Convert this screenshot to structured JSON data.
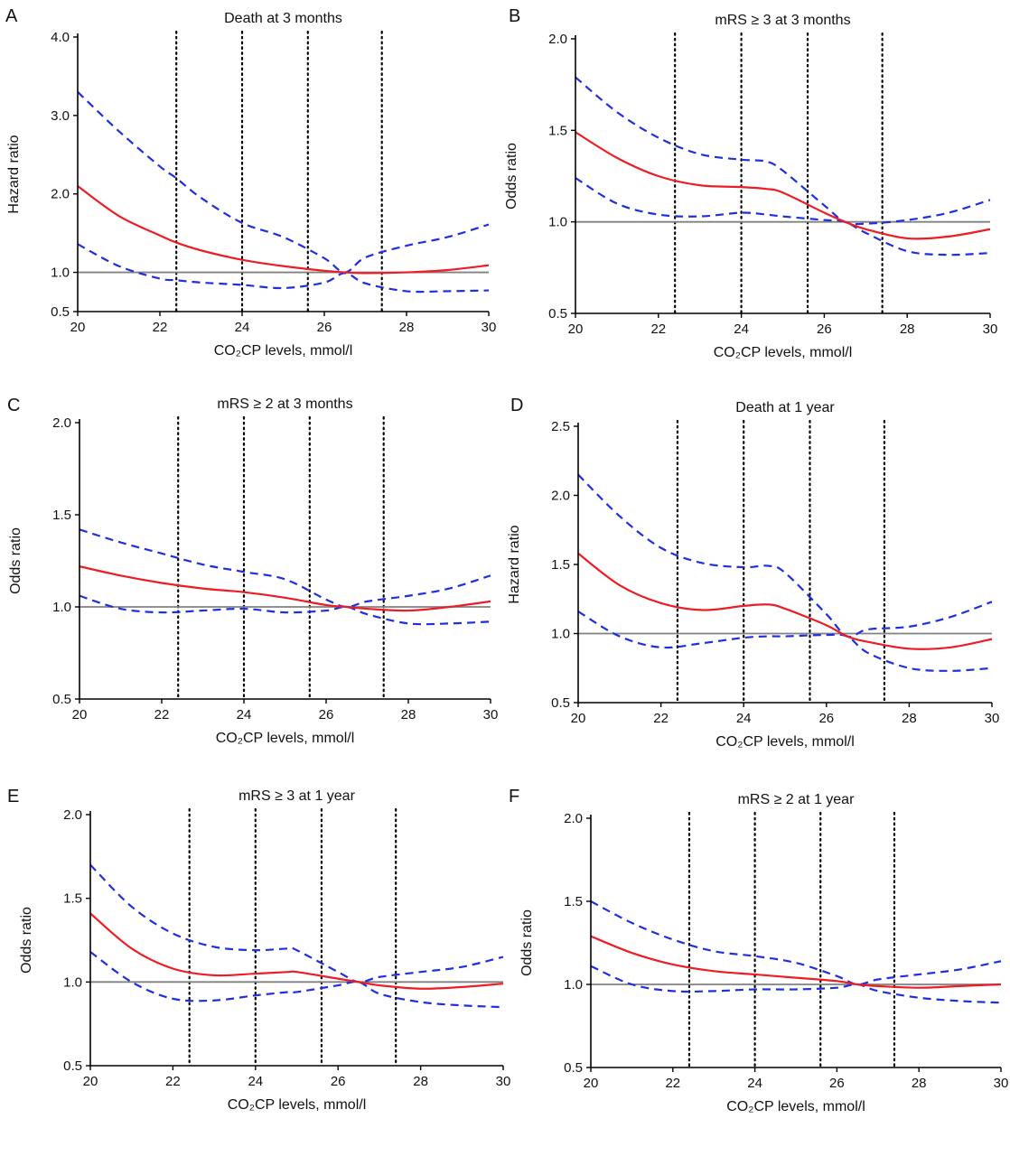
{
  "colors": {
    "estimate": "#ee1c25",
    "ci": "#1f2fe0",
    "reference": "#808080",
    "knot": "#000000",
    "axis": "#000000"
  },
  "chart_data": [
    {
      "type": "line",
      "panel": "A",
      "title": "Death at 3 months",
      "xlabel": "CO₂CP levels, mmol/l",
      "ylabel": "Hazard ratio",
      "xlim": [
        20,
        30
      ],
      "ylim": [
        0.5,
        4.0
      ],
      "x_ticks": [
        "20",
        "22",
        "24",
        "26",
        "28",
        "30"
      ],
      "y_ticks": [
        "4.0",
        "3.0",
        "2.0",
        "1.0",
        "0.5"
      ],
      "y_tick_values": [
        4.0,
        3.0,
        2.0,
        1.0,
        0.5
      ],
      "reference_y": 1.0,
      "knots": [
        22.4,
        24.0,
        25.6,
        27.4
      ],
      "x": [
        20,
        21,
        22,
        22.4,
        23,
        24,
        25,
        26,
        26.5,
        27,
        28,
        29,
        30
      ],
      "series": [
        {
          "name": "Estimate",
          "style": "solid",
          "values": [
            2.1,
            1.72,
            1.47,
            1.38,
            1.28,
            1.16,
            1.08,
            1.02,
            1.0,
            0.99,
            1.0,
            1.03,
            1.09
          ]
        },
        {
          "name": "Upper CI",
          "style": "dashed",
          "values": [
            3.3,
            2.8,
            2.35,
            2.2,
            1.95,
            1.63,
            1.45,
            1.18,
            1.0,
            1.19,
            1.34,
            1.45,
            1.61
          ]
        },
        {
          "name": "Lower CI",
          "style": "dashed",
          "values": [
            1.36,
            1.08,
            0.92,
            0.9,
            0.87,
            0.84,
            0.8,
            0.87,
            0.99,
            0.86,
            0.76,
            0.76,
            0.77
          ]
        }
      ]
    },
    {
      "type": "line",
      "panel": "B",
      "title": "mRS ≥ 3 at 3 months",
      "xlabel": "CO₂CP levels, mmol/l",
      "ylabel": "Odds ratio",
      "xlim": [
        20,
        30
      ],
      "ylim": [
        0.5,
        2.0
      ],
      "x_ticks": [
        "20",
        "22",
        "24",
        "26",
        "28",
        "30"
      ],
      "y_ticks": [
        "2.0",
        "1.5",
        "1.0",
        "0.5"
      ],
      "y_tick_values": [
        2.0,
        1.5,
        1.0,
        0.5
      ],
      "reference_y": 1.0,
      "knots": [
        22.4,
        24.0,
        25.6,
        27.4
      ],
      "x": [
        20,
        21,
        22,
        23,
        24,
        24.6,
        25,
        26,
        26.5,
        27,
        28,
        29,
        30
      ],
      "series": [
        {
          "name": "Estimate",
          "style": "solid",
          "values": [
            1.49,
            1.35,
            1.25,
            1.2,
            1.19,
            1.18,
            1.16,
            1.05,
            1.0,
            0.96,
            0.91,
            0.92,
            0.96
          ]
        },
        {
          "name": "Upper CI",
          "style": "dashed",
          "values": [
            1.79,
            1.6,
            1.46,
            1.37,
            1.34,
            1.33,
            1.28,
            1.09,
            1.0,
            0.99,
            1.01,
            1.05,
            1.12
          ]
        },
        {
          "name": "Lower CI",
          "style": "dashed",
          "values": [
            1.24,
            1.1,
            1.04,
            1.03,
            1.05,
            1.04,
            1.03,
            1.01,
            1.0,
            0.94,
            0.84,
            0.82,
            0.83
          ]
        }
      ]
    },
    {
      "type": "line",
      "panel": "C",
      "title": "mRS ≥ 2 at 3 months",
      "xlabel": "CO₂CP levels, mmol/l",
      "ylabel": "Odds ratio",
      "xlim": [
        20,
        30
      ],
      "ylim": [
        0.5,
        2.0
      ],
      "x_ticks": [
        "20",
        "22",
        "24",
        "26",
        "28",
        "30"
      ],
      "y_ticks": [
        "2.0",
        "1.5",
        "1.0",
        "0.5"
      ],
      "y_tick_values": [
        2.0,
        1.5,
        1.0,
        0.5
      ],
      "reference_y": 1.0,
      "knots": [
        22.4,
        24.0,
        25.6,
        27.4
      ],
      "x": [
        20,
        21,
        22,
        23,
        24,
        25,
        26,
        26.5,
        27,
        28,
        29,
        30
      ],
      "series": [
        {
          "name": "Estimate",
          "style": "solid",
          "values": [
            1.22,
            1.17,
            1.13,
            1.1,
            1.08,
            1.05,
            1.01,
            1.0,
            0.99,
            0.98,
            1.0,
            1.03
          ]
        },
        {
          "name": "Upper CI",
          "style": "dashed",
          "values": [
            1.42,
            1.35,
            1.29,
            1.23,
            1.19,
            1.15,
            1.04,
            1.0,
            1.03,
            1.06,
            1.1,
            1.17
          ]
        },
        {
          "name": "Lower CI",
          "style": "dashed",
          "values": [
            1.06,
            0.99,
            0.97,
            0.98,
            0.99,
            0.97,
            0.98,
            1.0,
            0.96,
            0.91,
            0.91,
            0.92
          ]
        }
      ]
    },
    {
      "type": "line",
      "panel": "D",
      "title": "Death at 1 year",
      "xlabel": "CO₂CP levels, mmol/l",
      "ylabel": "Hazard ratio",
      "xlim": [
        20,
        30
      ],
      "ylim": [
        0.5,
        2.5
      ],
      "x_ticks": [
        "20",
        "22",
        "24",
        "26",
        "28",
        "30"
      ],
      "y_ticks": [
        "2.5",
        "2.0",
        "1.5",
        "1.0",
        "0.5"
      ],
      "y_tick_values": [
        2.5,
        2.0,
        1.5,
        1.0,
        0.5
      ],
      "reference_y": 1.0,
      "knots": [
        22.4,
        24.0,
        25.6,
        27.4
      ],
      "x": [
        20,
        21,
        22,
        23,
        24,
        24.6,
        25,
        26,
        26.5,
        27,
        28,
        29,
        30
      ],
      "series": [
        {
          "name": "Estimate",
          "style": "solid",
          "values": [
            1.58,
            1.35,
            1.22,
            1.17,
            1.2,
            1.21,
            1.18,
            1.06,
            0.98,
            0.94,
            0.89,
            0.9,
            0.96
          ]
        },
        {
          "name": "Upper CI",
          "style": "dashed",
          "values": [
            2.15,
            1.85,
            1.62,
            1.51,
            1.48,
            1.49,
            1.44,
            1.14,
            0.98,
            1.03,
            1.05,
            1.12,
            1.23
          ]
        },
        {
          "name": "Lower CI",
          "style": "dashed",
          "values": [
            1.16,
            0.98,
            0.9,
            0.93,
            0.97,
            0.98,
            0.98,
            0.99,
            0.98,
            0.86,
            0.75,
            0.73,
            0.75
          ]
        }
      ]
    },
    {
      "type": "line",
      "panel": "E",
      "title": "mRS ≥ 3 at 1 year",
      "xlabel": "CO₂CP levels, mmol/l",
      "ylabel": "Odds ratio",
      "xlim": [
        20,
        30
      ],
      "ylim": [
        0.5,
        2.0
      ],
      "x_ticks": [
        "20",
        "22",
        "24",
        "26",
        "28",
        "30"
      ],
      "y_ticks": [
        "2.0",
        "1.5",
        "1.0",
        "0.5"
      ],
      "y_tick_values": [
        2.0,
        1.5,
        1.0,
        0.5
      ],
      "reference_y": 1.0,
      "knots": [
        22.4,
        24.0,
        25.6,
        27.4
      ],
      "x": [
        20,
        21,
        22,
        23,
        24,
        24.8,
        25,
        26,
        26.5,
        27,
        28,
        29,
        30
      ],
      "series": [
        {
          "name": "Estimate",
          "style": "solid",
          "values": [
            1.41,
            1.2,
            1.08,
            1.04,
            1.05,
            1.06,
            1.06,
            1.02,
            1.0,
            0.98,
            0.96,
            0.97,
            0.99
          ]
        },
        {
          "name": "Upper CI",
          "style": "dashed",
          "values": [
            1.7,
            1.45,
            1.29,
            1.21,
            1.19,
            1.2,
            1.19,
            1.06,
            1.0,
            1.03,
            1.06,
            1.09,
            1.15
          ]
        },
        {
          "name": "Lower CI",
          "style": "dashed",
          "values": [
            1.18,
            1.0,
            0.9,
            0.89,
            0.92,
            0.94,
            0.94,
            0.98,
            1.0,
            0.93,
            0.88,
            0.86,
            0.85
          ]
        }
      ]
    },
    {
      "type": "line",
      "panel": "F",
      "title": "mRS ≥ 2 at 1 year",
      "xlabel": "CO₂CP levels, mmol/l",
      "ylabel": "Odds ratio",
      "xlim": [
        20,
        30
      ],
      "ylim": [
        0.5,
        2.0
      ],
      "x_ticks": [
        "20",
        "22",
        "24",
        "26",
        "28",
        "30"
      ],
      "y_ticks": [
        "2.0",
        "1.5",
        "1.0",
        "0.5"
      ],
      "y_tick_values": [
        2.0,
        1.5,
        1.0,
        0.5
      ],
      "reference_y": 1.0,
      "knots": [
        22.4,
        24.0,
        25.6,
        27.4
      ],
      "x": [
        20,
        21,
        22,
        23,
        24,
        25,
        26,
        26.5,
        27,
        28,
        29,
        30
      ],
      "series": [
        {
          "name": "Estimate",
          "style": "solid",
          "values": [
            1.29,
            1.19,
            1.12,
            1.08,
            1.06,
            1.04,
            1.02,
            1.0,
            0.99,
            0.98,
            0.99,
            1.0
          ]
        },
        {
          "name": "Upper CI",
          "style": "dashed",
          "values": [
            1.5,
            1.37,
            1.27,
            1.2,
            1.17,
            1.13,
            1.05,
            1.0,
            1.03,
            1.06,
            1.09,
            1.14
          ]
        },
        {
          "name": "Lower CI",
          "style": "dashed",
          "values": [
            1.11,
            1.0,
            0.96,
            0.96,
            0.97,
            0.97,
            0.98,
            1.0,
            0.96,
            0.92,
            0.9,
            0.89
          ]
        }
      ]
    }
  ]
}
